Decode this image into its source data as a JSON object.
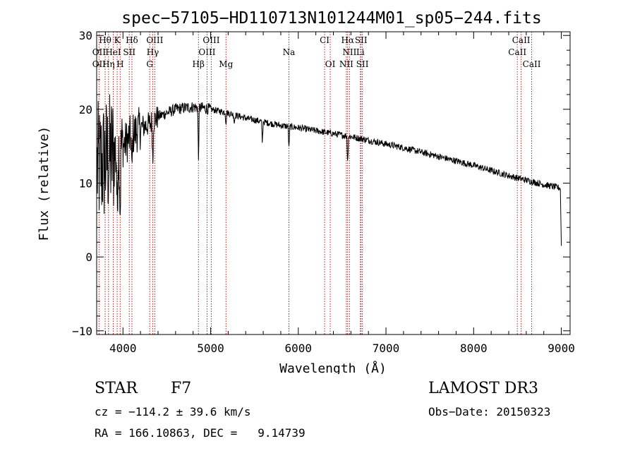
{
  "chart_data": {
    "type": "line",
    "title": "spec−57105−HD110713N101244M01_sp05−244.fits",
    "xlabel": "Wavelength (Å)",
    "ylabel": "Flux (relative)",
    "xlim": [
      3700,
      9100
    ],
    "ylim": [
      -10.5,
      30.5
    ],
    "xticks": [
      4000,
      5000,
      6000,
      7000,
      8000,
      9000
    ],
    "yticks": [
      -10,
      0,
      10,
      20,
      30
    ],
    "ytick_labels": [
      "−10",
      "0",
      "10",
      "20",
      "30"
    ],
    "grid": false,
    "series": [
      {
        "name": "spectrum",
        "continuum_x": [
          3700,
          3800,
          3900,
          4000,
          4100,
          4200,
          4300,
          4400,
          4500,
          4600,
          4700,
          4800,
          4900,
          5000,
          5200,
          5400,
          5600,
          5800,
          6000,
          6200,
          6400,
          6600,
          6800,
          7000,
          7200,
          7400,
          7600,
          7800,
          8000,
          8200,
          8400,
          8600,
          8800,
          9000
        ],
        "continuum_y": [
          12,
          13,
          14,
          15,
          16.5,
          17.5,
          18,
          19,
          19.5,
          20,
          20.2,
          20.3,
          20.2,
          20,
          19.5,
          18.8,
          18.3,
          17.8,
          17.5,
          17.1,
          16.7,
          16.3,
          15.8,
          15.3,
          14.8,
          14.2,
          13.6,
          13,
          12.4,
          11.7,
          11,
          10.4,
          9.8,
          9.3
        ],
        "absorption_lines": [
          {
            "x": 4861,
            "depth": 7
          },
          {
            "x": 5175,
            "depth": 1.5
          },
          {
            "x": 5270,
            "depth": 1.2
          },
          {
            "x": 5590,
            "depth": 3
          },
          {
            "x": 5893,
            "depth": 3
          },
          {
            "x": 6563,
            "depth": 4
          },
          {
            "x": 3934,
            "depth": 10
          },
          {
            "x": 3968,
            "depth": 9
          },
          {
            "x": 4102,
            "depth": 6
          },
          {
            "x": 4340,
            "depth": 6
          }
        ],
        "end_drop": {
          "x": 9000,
          "y": 1.5
        }
      }
    ],
    "annotations": {
      "row1": [
        {
          "label": "Hθ",
          "x": 3797
        },
        {
          "label": "K",
          "x": 3934
        },
        {
          "label": "Hδ",
          "x": 4102
        },
        {
          "label": "OIII",
          "x": 4363
        },
        {
          "label": "OIII",
          "x": 5007
        },
        {
          "label": "CI",
          "x": 6300
        },
        {
          "label": "Hα",
          "x": 6563
        },
        {
          "label": "SII",
          "x": 6716
        },
        {
          "label": "CaII",
          "x": 8542
        }
      ],
      "row2": [
        {
          "label": "OII",
          "x": 3727
        },
        {
          "label": "HeI",
          "x": 3889
        },
        {
          "label": "SII",
          "x": 4072
        },
        {
          "label": "Hγ",
          "x": 4340
        },
        {
          "label": "OIII",
          "x": 4959
        },
        {
          "label": "Na",
          "x": 5893
        },
        {
          "label": "NII",
          "x": 6584
        },
        {
          "label": "Li",
          "x": 6708
        },
        {
          "label": "CaII",
          "x": 8498
        }
      ],
      "row3": [
        {
          "label": "OII",
          "x": 3727
        },
        {
          "label": "Hη",
          "x": 3835
        },
        {
          "label": "H",
          "x": 3968
        },
        {
          "label": "G",
          "x": 4305
        },
        {
          "label": "Hβ",
          "x": 4861
        },
        {
          "label": "Mg",
          "x": 5175
        },
        {
          "label": "OI",
          "x": 6364
        },
        {
          "label": "NII",
          "x": 6548
        },
        {
          "label": "SII",
          "x": 6731
        },
        {
          "label": "CaII",
          "x": 8662
        }
      ],
      "line_color": "#b22222"
    }
  },
  "info": {
    "class_label": "STAR",
    "subclass": "F7",
    "survey": "LAMOST DR3",
    "cz": "cz = −114.2 ± 39.6 km/s",
    "obs_date": "Obs−Date: 20150323",
    "coords": "RA = 166.10863, DEC =   9.14739"
  }
}
